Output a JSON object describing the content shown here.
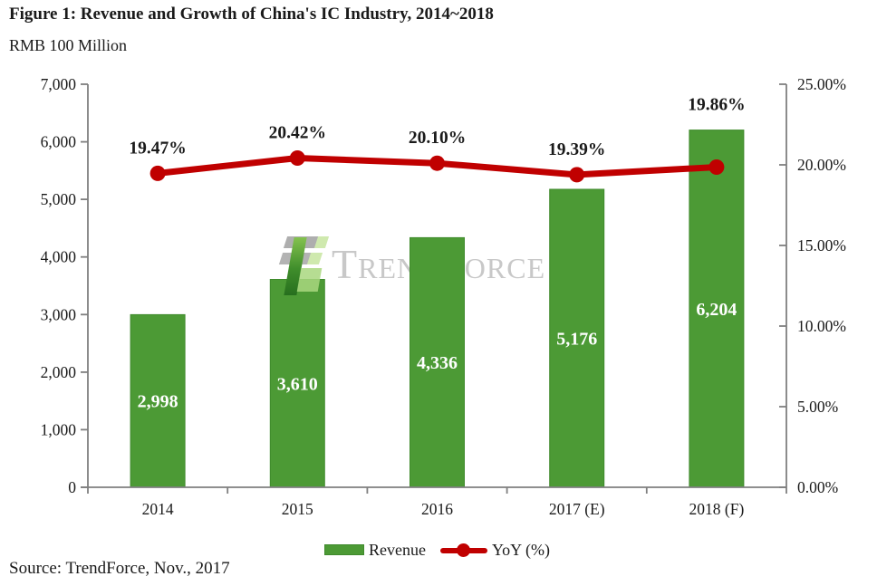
{
  "source": {
    "text": "Source: TrendForce, Nov., 2017"
  },
  "watermark": {
    "text": "TrendForce"
  },
  "colors": {
    "bar": "#4C9A35",
    "bar_border": "#3F8A2C",
    "line": "#C00000",
    "axis": "#7F7F7F",
    "text": "#1A1A1A",
    "bar_label": "#FFFFFF"
  },
  "chart_data": {
    "type": "bar+line combo",
    "title": "Figure 1: Revenue and Growth of China's IC Industry, 2014~2018",
    "ylabel": "RMB 100 Million",
    "categories": [
      "2014",
      "2015",
      "2016",
      "2017 (E)",
      "2018 (F)"
    ],
    "series": [
      {
        "name": "Revenue",
        "type": "bar",
        "axis": "left",
        "values": [
          2998,
          3610,
          4336,
          5176,
          6204
        ],
        "labels": [
          "2,998",
          "3,610",
          "4,336",
          "5,176",
          "6,204"
        ]
      },
      {
        "name": "YoY (%)",
        "type": "line",
        "axis": "right",
        "values": [
          19.47,
          20.42,
          20.1,
          19.39,
          19.86
        ],
        "labels": [
          "19.47%",
          "20.42%",
          "20.10%",
          "19.39%",
          "19.86%"
        ]
      }
    ],
    "left_axis": {
      "min": 0,
      "max": 7000,
      "step": 1000,
      "tick_labels": [
        "0",
        "1,000",
        "2,000",
        "3,000",
        "4,000",
        "5,000",
        "6,000",
        "7,000"
      ]
    },
    "right_axis": {
      "min": 0,
      "max": 25,
      "step": 5,
      "tick_labels": [
        "0.00%",
        "5.00%",
        "10.00%",
        "15.00%",
        "20.00%",
        "25.00%"
      ]
    },
    "grid": false,
    "legend_position": "bottom"
  }
}
